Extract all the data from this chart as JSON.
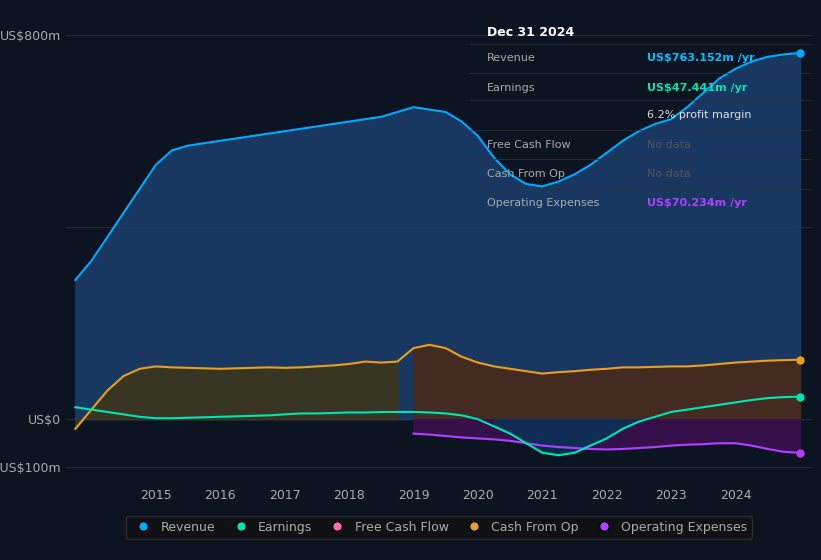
{
  "bg_color": "#0d1421",
  "plot_bg_color": "#0d1421",
  "info_box": {
    "date": "Dec 31 2024",
    "rows": [
      {
        "label": "Revenue",
        "value": "US$763.152m /yr",
        "value_color": "#00bfff"
      },
      {
        "label": "Earnings",
        "value": "US$47.441m /yr",
        "value_color": "#00e5b4"
      },
      {
        "label": "",
        "value": "6.2% profit margin",
        "value_color": "#dddddd"
      },
      {
        "label": "Free Cash Flow",
        "value": "No data",
        "value_color": "#555555"
      },
      {
        "label": "Cash From Op",
        "value": "No data",
        "value_color": "#555555"
      },
      {
        "label": "Operating Expenses",
        "value": "US$70.234m /yr",
        "value_color": "#b040ff"
      }
    ]
  },
  "ylim": [
    -130,
    850
  ],
  "xlim_start": 2013.6,
  "xlim_end": 2025.2,
  "xticks": [
    2015,
    2016,
    2017,
    2018,
    2019,
    2020,
    2021,
    2022,
    2023,
    2024
  ],
  "revenue_color": "#00aaff",
  "revenue_fill": "#1a3d6a",
  "earnings_color": "#00e5b4",
  "earnings_neg_fill": "#003a5a",
  "cashfromop_color": "#e8a020",
  "cashfromop_fill_early": "#3a3520",
  "cashfromop_fill_late": "#4a2a1a",
  "opex_color": "#b040ff",
  "opex_fill": "#3a1050",
  "fcf_color": "#ff69b4",
  "legend": [
    {
      "label": "Revenue",
      "color": "#00aaff"
    },
    {
      "label": "Earnings",
      "color": "#00e5b4"
    },
    {
      "label": "Free Cash Flow",
      "color": "#ff69b4"
    },
    {
      "label": "Cash From Op",
      "color": "#e8a020"
    },
    {
      "label": "Operating Expenses",
      "color": "#b040ff"
    }
  ],
  "revenue_x": [
    2013.75,
    2014.0,
    2014.25,
    2014.5,
    2014.75,
    2015.0,
    2015.25,
    2015.5,
    2015.75,
    2016.0,
    2016.25,
    2016.5,
    2016.75,
    2017.0,
    2017.25,
    2017.5,
    2017.75,
    2018.0,
    2018.25,
    2018.5,
    2018.75,
    2019.0,
    2019.25,
    2019.5,
    2019.75,
    2020.0,
    2020.25,
    2020.5,
    2020.75,
    2021.0,
    2021.25,
    2021.5,
    2021.75,
    2022.0,
    2022.25,
    2022.5,
    2022.75,
    2023.0,
    2023.25,
    2023.5,
    2023.75,
    2024.0,
    2024.25,
    2024.5,
    2024.75,
    2025.0
  ],
  "revenue_y": [
    290,
    330,
    380,
    430,
    480,
    530,
    560,
    570,
    575,
    580,
    585,
    590,
    595,
    600,
    605,
    610,
    615,
    620,
    625,
    630,
    640,
    650,
    645,
    640,
    620,
    590,
    545,
    510,
    490,
    485,
    495,
    510,
    530,
    555,
    580,
    600,
    615,
    625,
    650,
    680,
    710,
    730,
    745,
    755,
    760,
    763
  ],
  "earnings_x": [
    2013.75,
    2014.0,
    2014.25,
    2014.5,
    2014.75,
    2015.0,
    2015.25,
    2015.5,
    2015.75,
    2016.0,
    2016.25,
    2016.5,
    2016.75,
    2017.0,
    2017.25,
    2017.5,
    2017.75,
    2018.0,
    2018.25,
    2018.5,
    2018.75,
    2019.0,
    2019.25,
    2019.5,
    2019.75,
    2020.0,
    2020.25,
    2020.5,
    2020.75,
    2021.0,
    2021.25,
    2021.5,
    2021.75,
    2022.0,
    2022.25,
    2022.5,
    2022.75,
    2023.0,
    2023.25,
    2023.5,
    2023.75,
    2024.0,
    2024.25,
    2024.5,
    2024.75,
    2025.0
  ],
  "earnings_y": [
    25,
    20,
    15,
    10,
    5,
    2,
    2,
    3,
    4,
    5,
    6,
    7,
    8,
    10,
    12,
    12,
    13,
    14,
    14,
    15,
    15,
    15,
    14,
    12,
    8,
    0,
    -15,
    -30,
    -50,
    -70,
    -75,
    -70,
    -55,
    -40,
    -20,
    -5,
    5,
    15,
    20,
    25,
    30,
    35,
    40,
    44,
    46,
    47
  ],
  "cashfromop_x": [
    2013.75,
    2014.0,
    2014.25,
    2014.5,
    2014.75,
    2015.0,
    2015.25,
    2015.5,
    2015.75,
    2016.0,
    2016.25,
    2016.5,
    2016.75,
    2017.0,
    2017.25,
    2017.5,
    2017.75,
    2018.0,
    2018.25,
    2018.5,
    2018.75,
    2019.0,
    2019.25,
    2019.5,
    2019.75,
    2020.0,
    2020.25,
    2020.5,
    2020.75,
    2021.0,
    2021.25,
    2021.5,
    2021.75,
    2022.0,
    2022.25,
    2022.5,
    2022.75,
    2023.0,
    2023.25,
    2023.5,
    2023.75,
    2024.0,
    2024.25,
    2024.5,
    2024.75,
    2025.0
  ],
  "cashfromop_y": [
    -20,
    20,
    60,
    90,
    105,
    110,
    108,
    107,
    106,
    105,
    106,
    107,
    108,
    107,
    108,
    110,
    112,
    115,
    120,
    118,
    120,
    148,
    155,
    148,
    130,
    118,
    110,
    105,
    100,
    95,
    98,
    100,
    103,
    105,
    108,
    108,
    109,
    110,
    110,
    112,
    115,
    118,
    120,
    122,
    123,
    124
  ],
  "opex_x": [
    2019.0,
    2019.25,
    2019.5,
    2019.75,
    2020.0,
    2020.25,
    2020.5,
    2020.75,
    2021.0,
    2021.25,
    2021.5,
    2021.75,
    2022.0,
    2022.25,
    2022.5,
    2022.75,
    2023.0,
    2023.25,
    2023.5,
    2023.75,
    2024.0,
    2024.25,
    2024.5,
    2024.75,
    2025.0
  ],
  "opex_y": [
    -30,
    -32,
    -35,
    -38,
    -40,
    -42,
    -45,
    -50,
    -55,
    -58,
    -60,
    -62,
    -63,
    -62,
    -60,
    -58,
    -55,
    -53,
    -52,
    -50,
    -50,
    -55,
    -62,
    -68,
    -70
  ]
}
